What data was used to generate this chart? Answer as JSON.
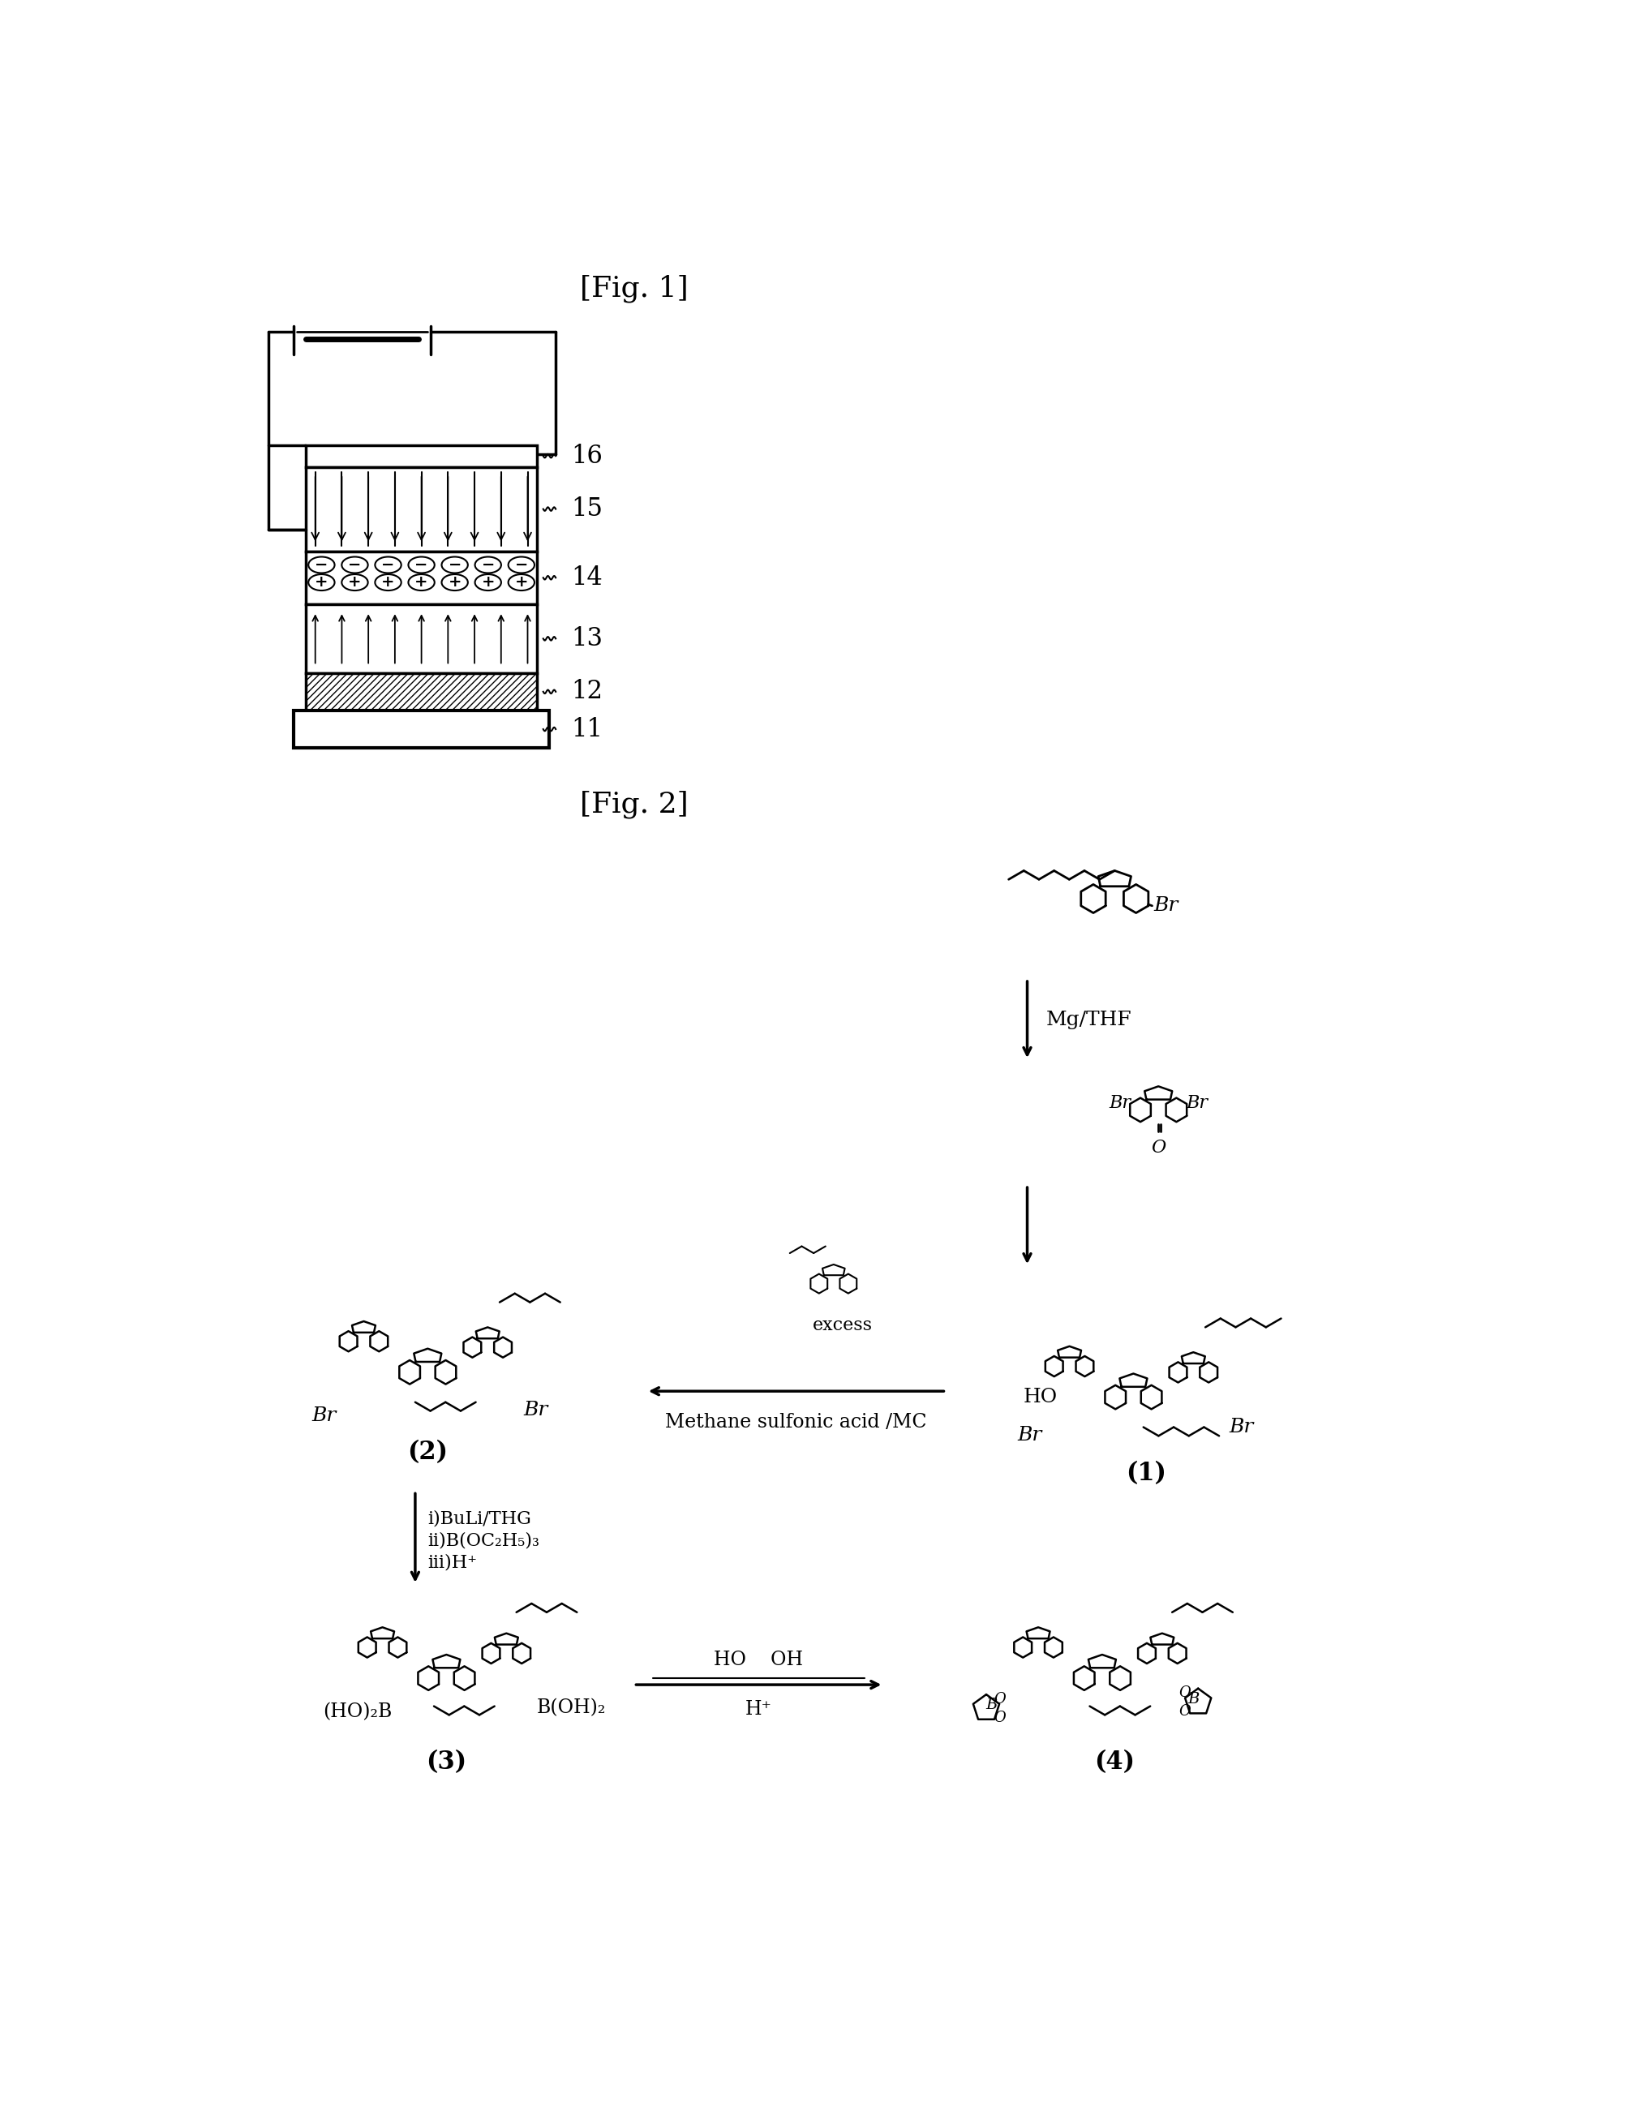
{
  "fig1_title": "[Fig. 1]",
  "fig2_title": "[Fig. 2]",
  "background": "#ffffff",
  "line_color": "#000000",
  "layer_labels": [
    "16",
    "15",
    "14",
    "13",
    "12",
    "11"
  ],
  "compound_labels": [
    "(1)",
    "(2)",
    "(3)",
    "(4)"
  ],
  "mg_thf": "Mg/THF",
  "methane_sulfonic": "Methane sulfonic acid /MC",
  "excess": "excess",
  "reagent3": "i)BuLi/THG",
  "reagent3b": "ii)B(OC₂H₅)₃",
  "reagent3c": "iii)H⁺",
  "ho_oh": "HO    OH",
  "h_plus": "H⁺",
  "br": "Br",
  "ho": "HO",
  "o_label": "O",
  "boh2": "B(OH)₂",
  "ho2b": "(HO)₂B"
}
